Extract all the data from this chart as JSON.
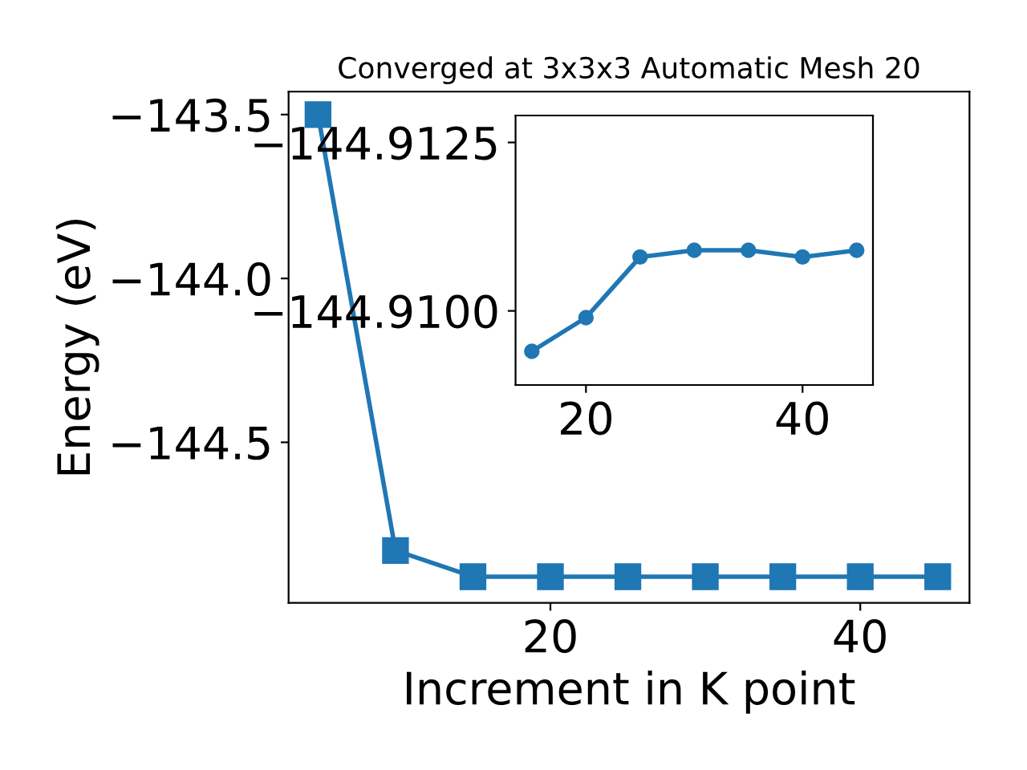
{
  "chart_data": [
    {
      "type": "line",
      "title": "Converged at 3x3x3 Automatic Mesh 20",
      "xlabel": "Increment in K point",
      "ylabel": "Energy (eV)",
      "x": [
        5,
        10,
        15,
        20,
        25,
        30,
        35,
        40,
        45
      ],
      "series": [
        {
          "color": "#1f77b4",
          "values": [
            -143.5,
            -144.83,
            -144.91,
            -144.91,
            -144.91,
            -144.91,
            -144.91,
            -144.91,
            -144.91
          ]
        }
      ],
      "xlim": [
        3.1,
        47.05
      ],
      "xticks": [
        20,
        40
      ],
      "ylim": [
        -144.99,
        -143.43
      ],
      "yticks": [
        {
          "value": -144.5,
          "label": "−144.5"
        },
        {
          "value": -144.0,
          "label": "−144.0"
        },
        {
          "value": -143.5,
          "label": "−143.5"
        }
      ],
      "marker": "square",
      "grid": false
    },
    {
      "type": "line",
      "x": [
        15,
        20,
        25,
        30,
        35,
        40,
        45
      ],
      "series": [
        {
          "color": "#1f77b4",
          "values": [
            -144.9094,
            -144.9099,
            -144.9108,
            -144.9109,
            -144.9109,
            -144.9108,
            -144.9109
          ]
        }
      ],
      "xlim": [
        13.5,
        46.5
      ],
      "xticks": [
        20,
        40
      ],
      "ylim": [
        -144.9089,
        -144.9129
      ],
      "yticks": [
        {
          "value": -144.9125,
          "label": "−144.9125"
        },
        {
          "value": -144.91,
          "label": "−144.9100"
        }
      ],
      "marker": "circle",
      "grid": false
    }
  ]
}
